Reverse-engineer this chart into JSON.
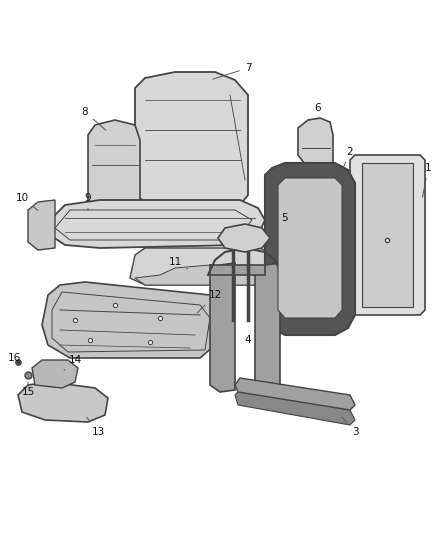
{
  "background_color": "#ffffff",
  "fig_width": 4.38,
  "fig_height": 5.33,
  "dpi": 100,
  "outline_color": "#444444",
  "dark_fill": "#5a5a5a",
  "light_fill": "#d8d8d8",
  "mid_fill": "#b8b8b8",
  "leader_color": "#555555",
  "label_fontsize": 7.5
}
